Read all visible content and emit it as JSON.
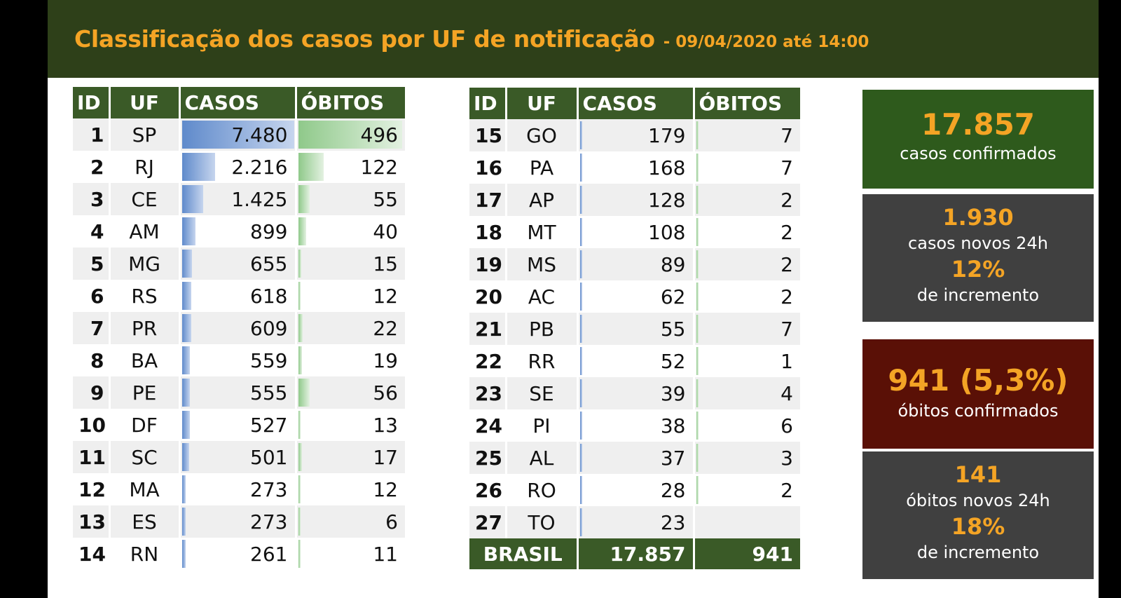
{
  "header": {
    "title": "Classificação dos casos por UF de notificação",
    "subtitle": "- 09/04/2020 até 14:00"
  },
  "columns": {
    "id": "ID",
    "uf": "UF",
    "casos": "CASOS",
    "obitos": "ÓBITOS"
  },
  "left_table": [
    {
      "id": "1",
      "uf": "SP",
      "casos": "7.480",
      "obitos": "496",
      "casos_value": 7480,
      "obitos_value": 496
    },
    {
      "id": "2",
      "uf": "RJ",
      "casos": "2.216",
      "obitos": "122",
      "casos_value": 2216,
      "obitos_value": 122
    },
    {
      "id": "3",
      "uf": "CE",
      "casos": "1.425",
      "obitos": "55",
      "casos_value": 1425,
      "obitos_value": 55
    },
    {
      "id": "4",
      "uf": "AM",
      "casos": "899",
      "obitos": "40",
      "casos_value": 899,
      "obitos_value": 40
    },
    {
      "id": "5",
      "uf": "MG",
      "casos": "655",
      "obitos": "15",
      "casos_value": 655,
      "obitos_value": 15
    },
    {
      "id": "6",
      "uf": "RS",
      "casos": "618",
      "obitos": "12",
      "casos_value": 618,
      "obitos_value": 12
    },
    {
      "id": "7",
      "uf": "PR",
      "casos": "609",
      "obitos": "22",
      "casos_value": 609,
      "obitos_value": 22
    },
    {
      "id": "8",
      "uf": "BA",
      "casos": "559",
      "obitos": "19",
      "casos_value": 559,
      "obitos_value": 19
    },
    {
      "id": "9",
      "uf": "PE",
      "casos": "555",
      "obitos": "56",
      "casos_value": 555,
      "obitos_value": 56
    },
    {
      "id": "10",
      "uf": "DF",
      "casos": "527",
      "obitos": "13",
      "casos_value": 527,
      "obitos_value": 13
    },
    {
      "id": "11",
      "uf": "SC",
      "casos": "501",
      "obitos": "17",
      "casos_value": 501,
      "obitos_value": 17
    },
    {
      "id": "12",
      "uf": "MA",
      "casos": "273",
      "obitos": "12",
      "casos_value": 273,
      "obitos_value": 12
    },
    {
      "id": "13",
      "uf": "ES",
      "casos": "273",
      "obitos": "6",
      "casos_value": 273,
      "obitos_value": 6
    },
    {
      "id": "14",
      "uf": "RN",
      "casos": "261",
      "obitos": "11",
      "casos_value": 261,
      "obitos_value": 11
    }
  ],
  "right_table": [
    {
      "id": "15",
      "uf": "GO",
      "casos": "179",
      "obitos": "7",
      "casos_value": 179,
      "obitos_value": 7
    },
    {
      "id": "16",
      "uf": "PA",
      "casos": "168",
      "obitos": "7",
      "casos_value": 168,
      "obitos_value": 7
    },
    {
      "id": "17",
      "uf": "AP",
      "casos": "128",
      "obitos": "2",
      "casos_value": 128,
      "obitos_value": 2
    },
    {
      "id": "18",
      "uf": "MT",
      "casos": "108",
      "obitos": "2",
      "casos_value": 108,
      "obitos_value": 2
    },
    {
      "id": "19",
      "uf": "MS",
      "casos": "89",
      "obitos": "2",
      "casos_value": 89,
      "obitos_value": 2
    },
    {
      "id": "20",
      "uf": "AC",
      "casos": "62",
      "obitos": "2",
      "casos_value": 62,
      "obitos_value": 2
    },
    {
      "id": "21",
      "uf": "PB",
      "casos": "55",
      "obitos": "7",
      "casos_value": 55,
      "obitos_value": 7
    },
    {
      "id": "22",
      "uf": "RR",
      "casos": "52",
      "obitos": "1",
      "casos_value": 52,
      "obitos_value": 1
    },
    {
      "id": "23",
      "uf": "SE",
      "casos": "39",
      "obitos": "4",
      "casos_value": 39,
      "obitos_value": 4
    },
    {
      "id": "24",
      "uf": "PI",
      "casos": "38",
      "obitos": "6",
      "casos_value": 38,
      "obitos_value": 6
    },
    {
      "id": "25",
      "uf": "AL",
      "casos": "37",
      "obitos": "3",
      "casos_value": 37,
      "obitos_value": 3
    },
    {
      "id": "26",
      "uf": "RO",
      "casos": "28",
      "obitos": "2",
      "casos_value": 28,
      "obitos_value": 2
    },
    {
      "id": "27",
      "uf": "TO",
      "casos": "23",
      "obitos": "",
      "casos_value": 23,
      "obitos_value": 0
    }
  ],
  "total": {
    "label": "BRASIL",
    "casos": "17.857",
    "obitos": "941"
  },
  "cards": {
    "confirmed": {
      "value": "17.857",
      "label": "casos confirmados",
      "bg": "#2e5a1c"
    },
    "new_cases": {
      "value": "1.930",
      "label": "casos novos 24h",
      "pct": "12%",
      "pct_label": "de incremento",
      "bg": "#404040"
    },
    "deaths": {
      "value": "941 (5,3%)",
      "label": "óbitos confirmados",
      "bg": "#5a1006"
    },
    "new_deaths": {
      "value": "141",
      "label": "óbitos novos 24h",
      "pct": "18%",
      "pct_label": "de incremento",
      "bg": "#404040"
    }
  },
  "colors": {
    "header_bg": "#2e4019",
    "accent": "#f4a425",
    "table_header": "#3a5a27",
    "bar_cases": "#5f8acb",
    "bar_deaths": "#8fc98a"
  }
}
